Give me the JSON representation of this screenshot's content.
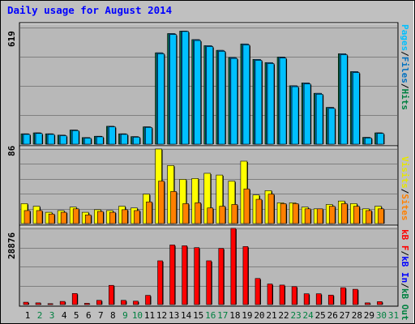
{
  "title": "Daily usage for August 2014",
  "colors": {
    "background": "#c0c0c0",
    "plot": "#b8b8b8",
    "title": "#0000ff",
    "pages": "#00c0ff",
    "files": "#0070c0",
    "hits": "#008040",
    "visits": "#ffff00",
    "sites": "#ff8000",
    "kbf": "#ff0000",
    "kbin": "#0000ff",
    "kbout": "#008040"
  },
  "legend": {
    "top": [
      "Pages",
      "Files",
      "Hits"
    ],
    "middle": [
      "Visits",
      "Sites"
    ],
    "bottom": [
      "kB F",
      "kB In",
      "kB Out"
    ],
    "separator": "/"
  },
  "chart_data": [
    {
      "type": "bar",
      "title": "Daily usage for August 2014",
      "ylabel": "619",
      "ylim": [
        0,
        619
      ],
      "grid": true,
      "legend_position": "right",
      "categories": [
        "1",
        "2",
        "3",
        "4",
        "5",
        "6",
        "7",
        "8",
        "9",
        "10",
        "11",
        "12",
        "13",
        "14",
        "15",
        "16",
        "17",
        "18",
        "19",
        "20",
        "21",
        "22",
        "23",
        "24",
        "25",
        "26",
        "27",
        "28",
        "29",
        "30",
        "31"
      ],
      "series": [
        {
          "name": "Hits",
          "values": [
            55,
            60,
            55,
            48,
            75,
            35,
            42,
            95,
            55,
            40,
            92,
            485,
            587,
            600,
            555,
            523,
            498,
            460,
            532,
            450,
            433,
            462,
            310,
            325,
            270,
            195,
            480,
            385,
            36,
            60,
            0
          ]
        },
        {
          "name": "Files",
          "values": [
            55,
            60,
            55,
            48,
            75,
            35,
            42,
            95,
            55,
            40,
            92,
            485,
            587,
            600,
            555,
            523,
            498,
            460,
            532,
            450,
            433,
            462,
            310,
            325,
            270,
            195,
            480,
            385,
            36,
            60,
            0
          ]
        },
        {
          "name": "Pages",
          "values": [
            52,
            57,
            52,
            45,
            72,
            32,
            39,
            92,
            52,
            37,
            89,
            480,
            582,
            598,
            550,
            518,
            493,
            455,
            527,
            445,
            428,
            457,
            305,
            320,
            265,
            190,
            475,
            380,
            33,
            57,
            0
          ]
        }
      ]
    },
    {
      "type": "bar",
      "ylabel": "86",
      "ylim": [
        0,
        86
      ],
      "grid": true,
      "legend_position": "right",
      "categories": [
        "1",
        "2",
        "3",
        "4",
        "5",
        "6",
        "7",
        "8",
        "9",
        "10",
        "11",
        "12",
        "13",
        "14",
        "15",
        "16",
        "17",
        "18",
        "19",
        "20",
        "21",
        "22",
        "23",
        "24",
        "25",
        "26",
        "27",
        "28",
        "29",
        "30",
        "31"
      ],
      "series": [
        {
          "name": "Visits",
          "values": [
            23,
            20,
            13,
            15,
            19,
            13,
            16,
            15,
            20,
            18,
            34,
            86,
            67,
            51,
            52,
            58,
            56,
            49,
            72,
            33,
            38,
            24,
            24,
            19,
            17,
            22,
            26,
            23,
            17,
            20,
            0
          ]
        },
        {
          "name": "Sites",
          "values": [
            15,
            15,
            11,
            13,
            17,
            10,
            14,
            13,
            16,
            15,
            25,
            49,
            37,
            23,
            24,
            18,
            20,
            22,
            40,
            28,
            34,
            23,
            23,
            17,
            17,
            20,
            23,
            20,
            15,
            17,
            0
          ]
        }
      ]
    },
    {
      "type": "bar",
      "ylabel": "28876",
      "ylim": [
        0,
        28876
      ],
      "grid": true,
      "legend_position": "right",
      "categories": [
        "1",
        "2",
        "3",
        "4",
        "5",
        "6",
        "7",
        "8",
        "9",
        "10",
        "11",
        "12",
        "13",
        "14",
        "15",
        "16",
        "17",
        "18",
        "19",
        "20",
        "21",
        "22",
        "23",
        "24",
        "25",
        "26",
        "27",
        "28",
        "29",
        "30",
        "31"
      ],
      "series": [
        {
          "name": "kB F",
          "values": [
            900,
            650,
            350,
            1200,
            4200,
            480,
            1600,
            7300,
            1600,
            1300,
            3500,
            16600,
            22600,
            22300,
            21600,
            16600,
            21300,
            28876,
            22000,
            9900,
            7800,
            7400,
            6800,
            4100,
            4100,
            3600,
            6400,
            5800,
            650,
            1100,
            0
          ]
        }
      ]
    }
  ]
}
